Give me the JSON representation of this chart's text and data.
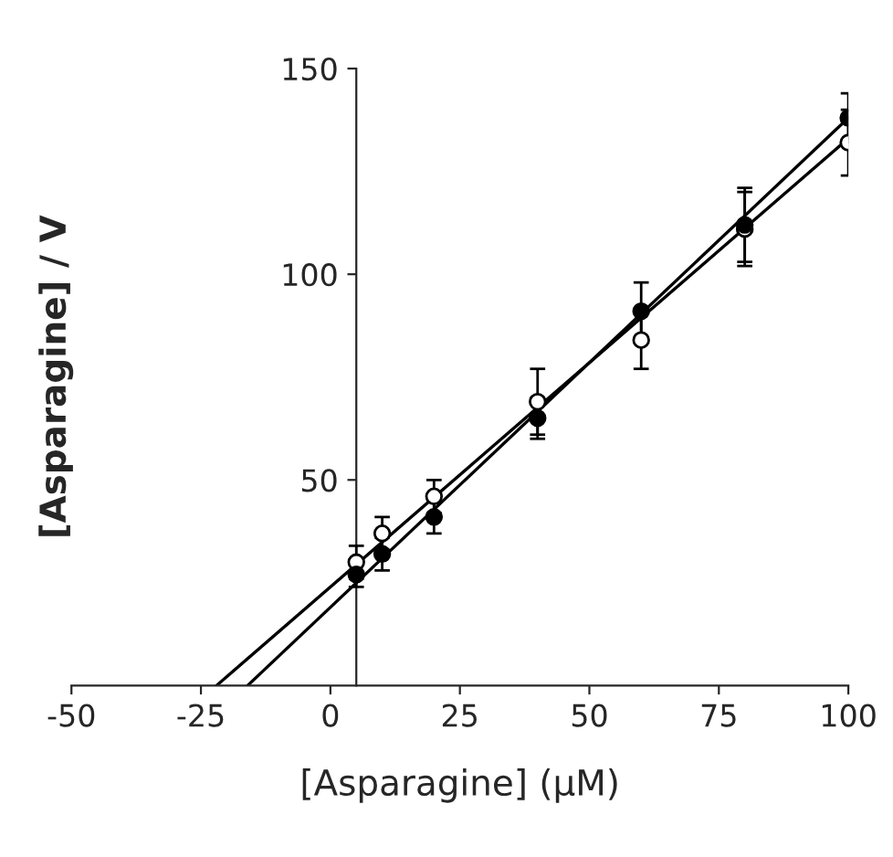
{
  "chart_data": {
    "type": "scatter",
    "xlabel": "[Asparagine] (μM)",
    "ylabel": "[Asparagine] / V",
    "x": [
      5,
      10,
      20,
      40,
      60,
      80,
      100
    ],
    "xlim": [
      -50,
      100
    ],
    "xticks": [
      -50,
      -25,
      0,
      25,
      50,
      75,
      100
    ],
    "ylim": [
      0,
      150
    ],
    "yticks": [
      50,
      100,
      150
    ],
    "grid": false,
    "legend": false,
    "series": [
      {
        "marker": "circle",
        "color": "#000000",
        "values": [
          27,
          32,
          41,
          65,
          91,
          112,
          138
        ],
        "errors": [
          3,
          4,
          4,
          5,
          7,
          9,
          6
        ]
      },
      {
        "marker": "circle",
        "color": "#000000",
        "values": [
          30,
          37,
          46,
          69,
          84,
          111,
          132
        ],
        "errors": [
          4,
          4,
          4,
          8,
          7,
          9,
          8
        ]
      },
      {
        "type": "line",
        "marker": "none",
        "color": "#000000",
        "x": [
          -16,
          100
        ],
        "values": [
          0,
          138
        ]
      },
      {
        "type": "line",
        "marker": "none",
        "color": "#000000",
        "x": [
          -22,
          100
        ],
        "values": [
          0,
          133
        ]
      }
    ]
  }
}
